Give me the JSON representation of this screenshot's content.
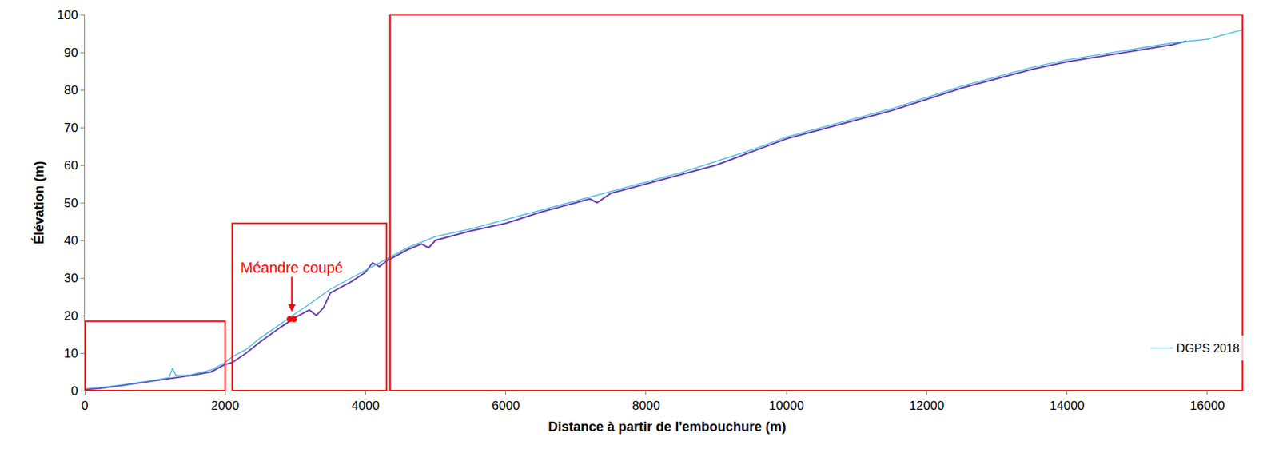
{
  "chart_data": {
    "type": "line",
    "x_label": "Distance à partir de l'embouchure (m)",
    "y_label": "Élévation (m)",
    "xlim": [
      0,
      16600
    ],
    "xticks": [
      0,
      2000,
      4000,
      6000,
      8000,
      10000,
      12000,
      14000,
      16000
    ],
    "ylim": [
      0,
      100
    ],
    "yticks": [
      0,
      10,
      20,
      30,
      40,
      50,
      60,
      70,
      80,
      90,
      100
    ],
    "grid": false,
    "legend": "bottom right",
    "series": [
      {
        "color": "#6a3ab2",
        "type": "line",
        "line_style": "solid",
        "x": [
          0,
          200,
          500,
          800,
          1000,
          1200,
          1500,
          1800,
          2000,
          2050,
          2100,
          2300,
          2500,
          2800,
          3000,
          3200,
          3300,
          3400,
          3500,
          3800,
          4000,
          4100,
          4200,
          4300,
          4400,
          4600,
          4800,
          4900,
          5000,
          5500,
          6000,
          6500,
          7000,
          7200,
          7300,
          7500,
          8000,
          8500,
          9000,
          9500,
          10000,
          10500,
          11000,
          11500,
          12000,
          12500,
          13000,
          13500,
          14000,
          14500,
          15000,
          15500,
          15700
        ],
        "values": [
          0.3,
          0.6,
          1.3,
          2.1,
          2.6,
          3.2,
          4,
          5,
          7,
          7.2,
          7.5,
          10,
          13,
          17,
          19.5,
          21.5,
          20,
          22,
          26,
          29,
          31.5,
          34,
          33,
          34.5,
          35.5,
          37.5,
          39,
          38,
          40,
          42.5,
          44.5,
          47.5,
          50,
          51,
          50,
          52.5,
          55,
          57.5,
          60,
          63.5,
          67,
          69.5,
          72,
          74.5,
          77.5,
          80.5,
          83,
          85.5,
          87.5,
          89,
          90.5,
          92,
          93
        ]
      },
      {
        "name": "DGPS 2018",
        "color": "#3cb8e0",
        "type": "line",
        "line_style": "solid",
        "x": [
          0,
          200,
          500,
          800,
          1000,
          1200,
          1250,
          1300,
          1500,
          1800,
          2000,
          2100,
          2300,
          2500,
          2800,
          3000,
          3200,
          3500,
          3800,
          4000,
          4200,
          4400,
          4600,
          5000,
          5500,
          6000,
          6500,
          7000,
          7500,
          8000,
          8500,
          9000,
          9500,
          10000,
          10500,
          11000,
          11500,
          12000,
          12500,
          13000,
          13500,
          14000,
          14500,
          15000,
          15500,
          16000,
          16500
        ],
        "values": [
          0.5,
          0.8,
          1.5,
          2.3,
          2.8,
          3.5,
          6,
          4,
          4.2,
          5.5,
          7.5,
          9,
          11,
          14,
          18,
          20.5,
          23,
          27,
          30,
          32,
          34,
          36,
          38,
          41,
          43,
          45.5,
          48,
          50.5,
          53,
          55.5,
          58,
          61,
          64,
          67.5,
          70,
          72.5,
          75,
          78,
          81,
          83.5,
          86,
          88,
          89.5,
          91,
          92.5,
          93.5,
          96
        ]
      },
      {
        "color": "#ff0000",
        "type": "scatter",
        "marker": "circle",
        "x": [
          2920,
          2980
        ],
        "values": [
          19,
          19
        ]
      }
    ],
    "annotations": [
      {
        "text": "Méandre coupé",
        "x": 2950,
        "y": 21,
        "color": "#ff0000"
      }
    ],
    "regions": [
      {
        "x": [
          0,
          2000
        ],
        "y": [
          0,
          18.5
        ],
        "color": "#ff0000"
      },
      {
        "x": [
          2100,
          4300
        ],
        "y": [
          0,
          44.5
        ],
        "color": "#ff0000"
      },
      {
        "x": [
          4350,
          16500
        ],
        "y": [
          0,
          100
        ],
        "color": "#ff0000"
      }
    ]
  }
}
